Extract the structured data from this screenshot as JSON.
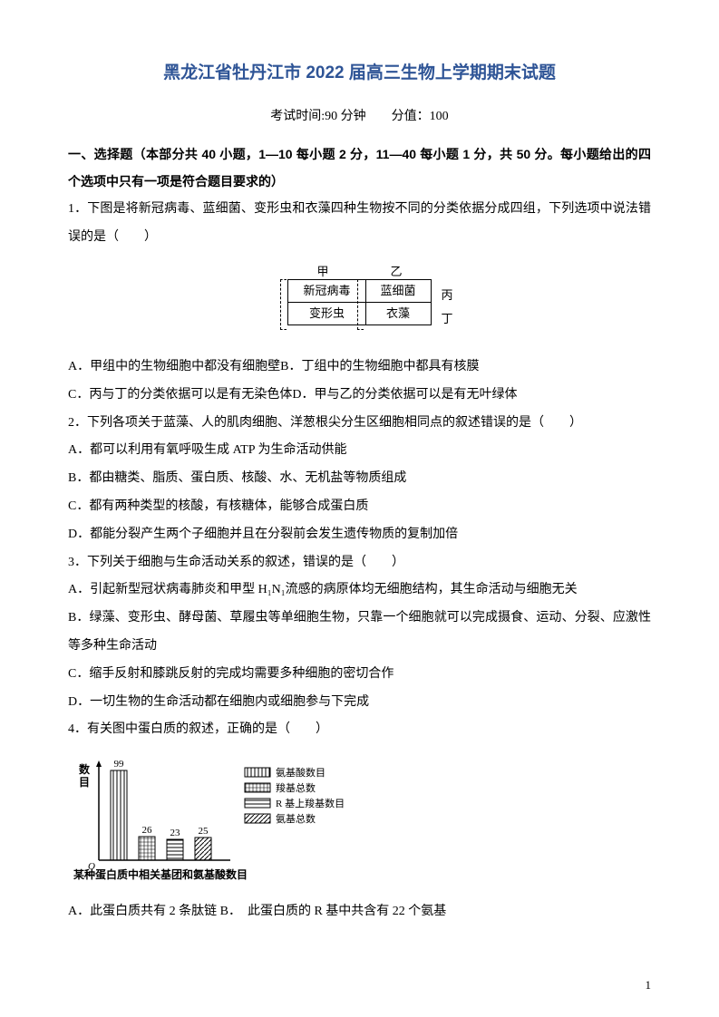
{
  "title": "黑龙江省牡丹江市 2022 届高三生物上学期期末试题",
  "subtitle": "考试时间:90 分钟　　分值：100",
  "section1": "一、选择题（本部分共 40 小题，1—10 每小题 2 分，11—40 每小题 1 分，共 50 分。每小题给出的四个选项中只有一项是符合题目要求的）",
  "q1": {
    "stem": "1．下图是将新冠病毒、蓝细菌、变形虫和衣藻四种生物按不同的分类依据分成四组，下列选项中说法错误的是（　　）",
    "table": {
      "r1c1": "新冠病毒",
      "r1c2": "蓝细菌",
      "r2c1": "变形虫",
      "r2c2": "衣藻",
      "top_left": "甲",
      "top_right": "乙",
      "right_top": "丙",
      "right_bot": "丁"
    },
    "optA": "A．甲组中的生物细胞中都没有细胞壁B．丁组中的生物细胞中都具有核膜",
    "optC": "C．丙与丁的分类依据可以是有无染色体D．甲与乙的分类依据可以是有无叶绿体"
  },
  "q2": {
    "stem": "2．下列各项关于蓝藻、人的肌肉细胞、洋葱根尖分生区细胞相同点的叙述错误的是（　　）",
    "optA": "A．都可以利用有氧呼吸生成 ATP 为生命活动供能",
    "optB": "B．都由糖类、脂质、蛋白质、核酸、水、无机盐等物质组成",
    "optC": "C．都有两种类型的核酸，有核糖体，能够合成蛋白质",
    "optD": "D．都能分裂产生两个子细胞并且在分裂前会发生遗传物质的复制加倍"
  },
  "q3": {
    "stem": "3．下列关于细胞与生命活动关系的叙述，错误的是（　　）",
    "optA": "A．引起新型冠状病毒肺炎和甲型 H₁N₁流感的病原体均无细胞结构，其生命活动与细胞无关",
    "optB": "B．绿藻、变形虫、酵母菌、草履虫等单细胞生物，只靠一个细胞就可以完成摄食、运动、分裂、应激性等多种生命活动",
    "optC": "C．缩手反射和膝跳反射的完成均需要多种细胞的密切合作",
    "optD": "D．一切生物的生命活动都在细胞内或细胞参与下完成"
  },
  "q4": {
    "stem": "4．有关图中蛋白质的叙述，正确的是（　　）",
    "chart": {
      "type": "bar",
      "ylabel": "数目",
      "categories": [
        "氨基酸数目",
        "羧基总数",
        "R 基上羧基数目",
        "氨基总数"
      ],
      "values": [
        99,
        26,
        23,
        25
      ],
      "bar_colors": [
        "#ffffff",
        "#ffffff",
        "#ffffff",
        "#ffffff"
      ],
      "bar_patterns": [
        "vstripe",
        "grid",
        "hstripe",
        "diag"
      ],
      "caption": "某种蛋白质中相关基团和氨基酸数目",
      "axis_color": "#000000",
      "label_fontsize": 11
    },
    "optA": "A．此蛋白质共有 2 条肽链 B．　此蛋白质的 R 基中共含有 22 个氨基"
  },
  "page_number": "1"
}
